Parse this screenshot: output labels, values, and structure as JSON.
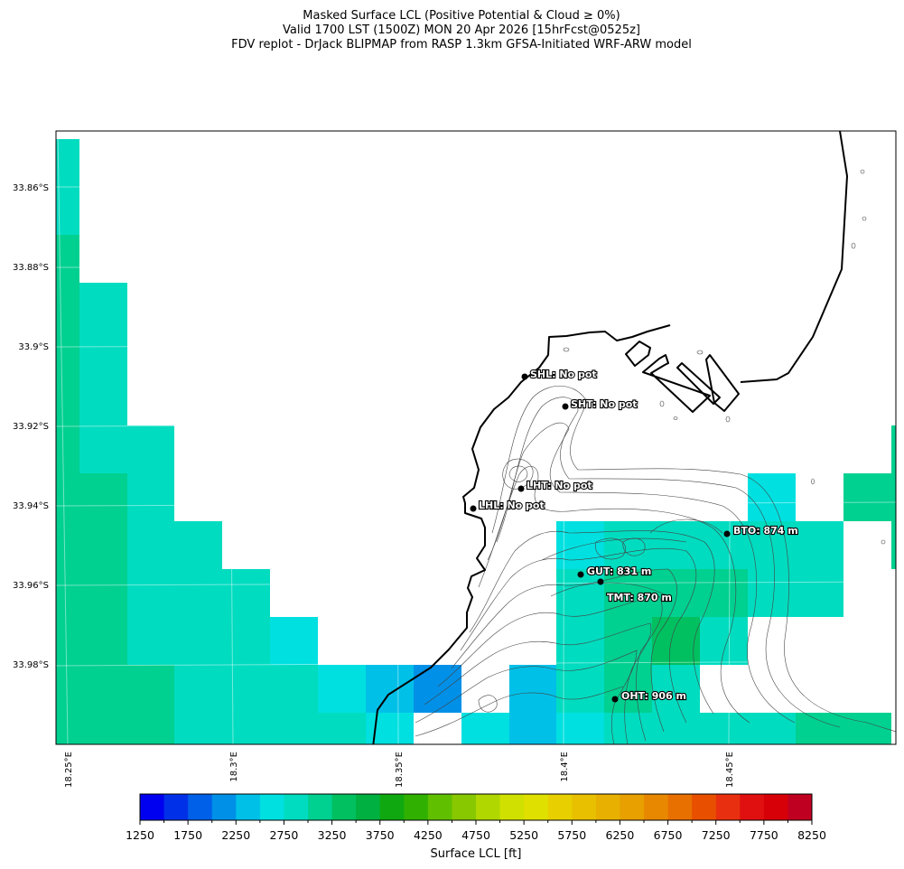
{
  "title": {
    "line1": "Masked Surface LCL (Positive Potential & Cloud ≥ 0%)",
    "line2": "Valid 1700 LST (1500Z) MON 20 Apr 2026 [15hrFcst@0525z]",
    "line3": "FDV replot - DrJack BLIPMAP from RASP 1.3km GFSA-Initiated WRF-ARW model"
  },
  "map": {
    "lat_labels": [
      "33.86°S",
      "33.88°S",
      "33.9°S",
      "33.92°S",
      "33.94°S",
      "33.96°S",
      "33.98°S"
    ],
    "lon_labels": [
      "18.25°E",
      "18.3°E",
      "18.35°E",
      "18.4°E",
      "18.45°E"
    ],
    "stations": [
      {
        "label": "SHL: No pot"
      },
      {
        "label": "SHT: No pot"
      },
      {
        "label": "LHT: No pot"
      },
      {
        "label": "LHL: No pot"
      },
      {
        "label": "BTO: 874 m"
      },
      {
        "label": "GUT: 831 m"
      },
      {
        "label": "TMT: 870 m"
      },
      {
        "label": "OHT: 906 m"
      }
    ]
  },
  "chart_data": {
    "type": "heatmap",
    "units": "ft",
    "note_values": "each cell gives the lower bound of its colorbar bin; null = masked",
    "grid_rows": [
      [
        2750,
        null,
        null,
        null,
        null,
        null,
        null,
        null,
        null,
        null,
        null,
        null,
        null,
        null,
        null,
        null,
        null,
        null,
        null
      ],
      [
        2750,
        null,
        null,
        null,
        null,
        null,
        null,
        null,
        null,
        null,
        null,
        null,
        null,
        null,
        null,
        null,
        null,
        null,
        null
      ],
      [
        3000,
        null,
        null,
        null,
        null,
        null,
        null,
        null,
        null,
        null,
        null,
        null,
        null,
        null,
        null,
        null,
        null,
        null,
        null
      ],
      [
        3000,
        2750,
        null,
        null,
        null,
        null,
        null,
        null,
        null,
        null,
        null,
        null,
        null,
        null,
        null,
        null,
        null,
        null,
        null
      ],
      [
        3000,
        2750,
        null,
        null,
        null,
        null,
        null,
        null,
        null,
        null,
        null,
        null,
        null,
        null,
        null,
        null,
        null,
        null,
        null
      ],
      [
        3000,
        2750,
        null,
        null,
        null,
        null,
        null,
        null,
        null,
        null,
        null,
        null,
        null,
        null,
        null,
        null,
        null,
        null,
        null
      ],
      [
        3000,
        2750,
        2750,
        null,
        null,
        null,
        null,
        null,
        null,
        null,
        null,
        null,
        null,
        null,
        null,
        null,
        null,
        null,
        3000
      ],
      [
        3000,
        3000,
        2750,
        null,
        null,
        null,
        null,
        null,
        null,
        null,
        null,
        null,
        null,
        null,
        null,
        2500,
        null,
        3000,
        3000
      ],
      [
        3000,
        3000,
        2750,
        2750,
        null,
        null,
        null,
        null,
        null,
        null,
        null,
        2500,
        2750,
        2750,
        2750,
        2750,
        2750,
        null,
        3000
      ],
      [
        3000,
        3000,
        2750,
        2750,
        2750,
        null,
        null,
        null,
        null,
        null,
        null,
        2750,
        3000,
        3000,
        3000,
        2750,
        2750,
        null,
        null
      ],
      [
        3000,
        3000,
        2750,
        2750,
        2750,
        2500,
        null,
        null,
        null,
        null,
        null,
        2750,
        3000,
        3250,
        2750,
        null,
        null,
        null,
        null
      ],
      [
        3000,
        3000,
        3000,
        2750,
        2750,
        2750,
        2500,
        2250,
        2000,
        null,
        2250,
        2750,
        3000,
        2750,
        null,
        null,
        null,
        null,
        null
      ],
      [
        3000,
        3000,
        3000,
        2750,
        2750,
        2750,
        2750,
        2500,
        null,
        2500,
        2250,
        2500,
        2750,
        2750,
        2750,
        2750,
        3000,
        3000,
        null
      ]
    ],
    "colorbar": {
      "label": "Surface LCL [ft]",
      "min": 1250,
      "max": 8250,
      "step": 250,
      "tick_labels": [
        "1250",
        "1750",
        "2250",
        "2750",
        "3250",
        "3750",
        "4250",
        "4750",
        "5250",
        "5750",
        "6250",
        "6750",
        "7250",
        "7750",
        "8250"
      ],
      "colors": [
        "#0000f0",
        "#0030e8",
        "#0060e8",
        "#0090e8",
        "#00c0e8",
        "#00e0e0",
        "#00dcc0",
        "#00d090",
        "#00c060",
        "#00b040",
        "#10a810",
        "#30b000",
        "#60c000",
        "#88c800",
        "#b0d800",
        "#d0e000",
        "#e0e000",
        "#e8d000",
        "#e8c000",
        "#e8b000",
        "#e8a000",
        "#e88800",
        "#e87000",
        "#e85000",
        "#e83010",
        "#e01010",
        "#d80008",
        "#c00020"
      ]
    }
  }
}
